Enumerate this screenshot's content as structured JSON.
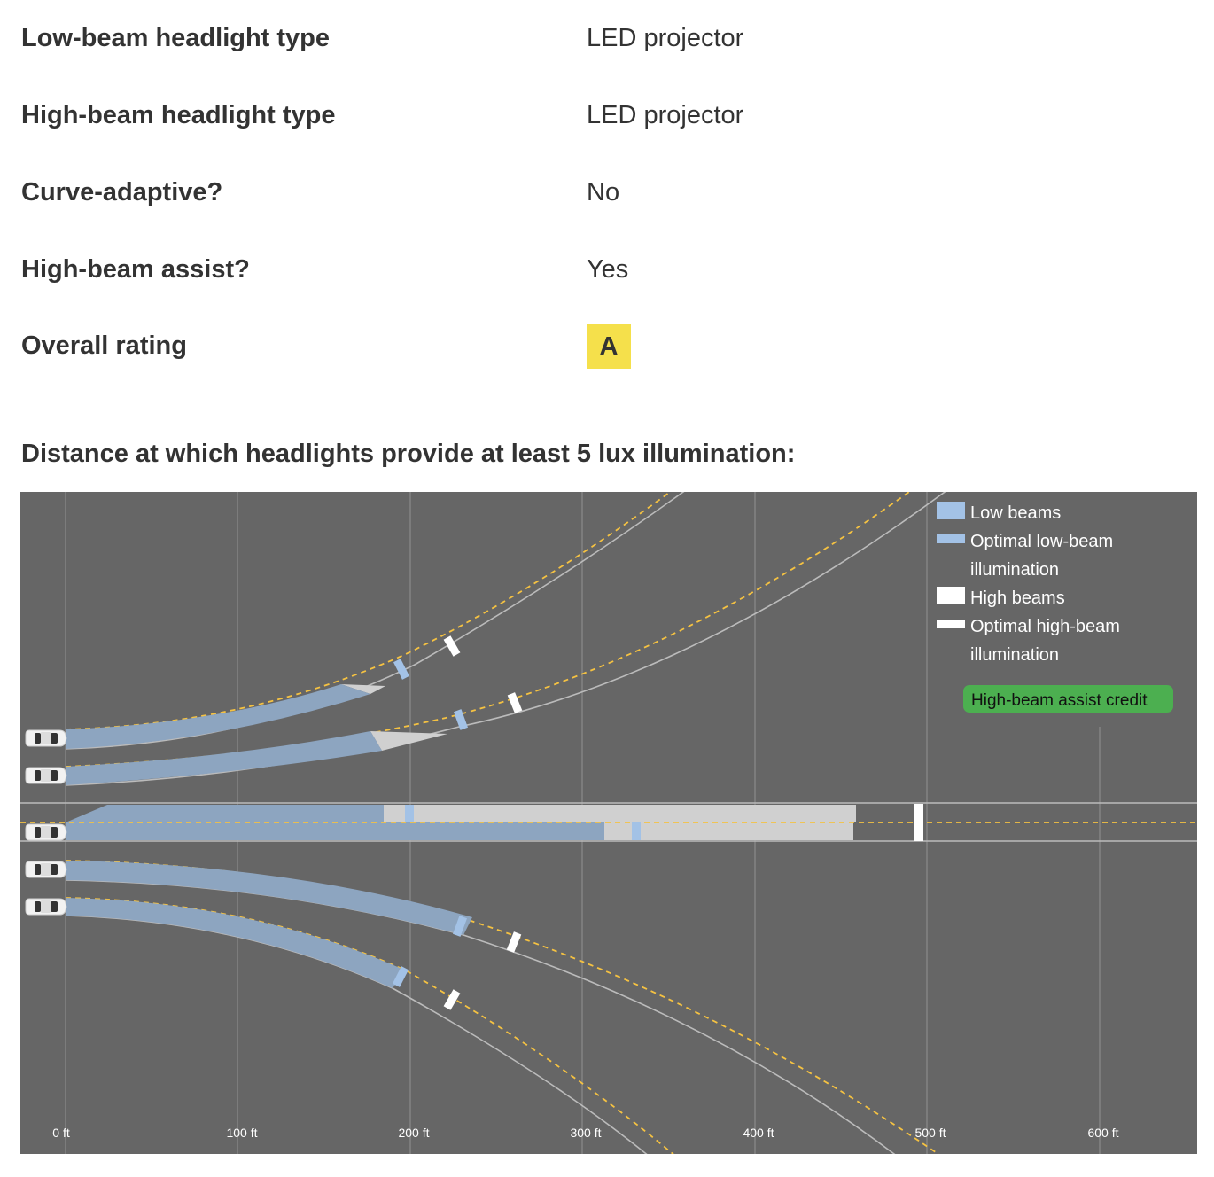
{
  "specs": [
    {
      "label": "Low-beam headlight type",
      "value": "LED projector"
    },
    {
      "label": "High-beam headlight type",
      "value": "LED projector"
    },
    {
      "label": "Curve-adaptive?",
      "value": "No"
    },
    {
      "label": "High-beam assist?",
      "value": "Yes"
    }
  ],
  "overall": {
    "label": "Overall rating",
    "rating": "A",
    "rating_color": "#f5e04b"
  },
  "section_title": "Distance at which headlights provide at least 5 lux illumination:",
  "legend": {
    "low_beams": "Low beams",
    "optimal_low_line1": "Optimal low-beam",
    "optimal_low_line2": "illumination",
    "high_beams": "High beams",
    "optimal_high_line1": "Optimal high-beam",
    "optimal_high_line2": "illumination",
    "assist_credit": "High-beam assist credit"
  },
  "axis_ticks": [
    "0 ft",
    "100 ft",
    "200 ft",
    "300 ft",
    "400 ft",
    "500 ft",
    "600 ft"
  ],
  "colors": {
    "background": "#666666",
    "low_beam": "#8da5c0",
    "optimal_low_marker": "#a3c2e6",
    "high_beam": "#d0d0d0",
    "optimal_high_marker": "#ffffff",
    "assist_credit": "#4caf50",
    "center_line": "#f5c242",
    "road_edge": "#bbbbbb"
  },
  "chart_data": {
    "type": "bar",
    "units": "ft",
    "xlim": [
      0,
      650
    ],
    "series": [
      {
        "name": "Low beams",
        "values": [
          182,
          175,
          337,
          235,
          197
        ]
      },
      {
        "name": "Optimal low-beam illumination",
        "values": [
          195,
          229,
          330,
          229,
          195
        ]
      },
      {
        "name": "High beams",
        "values": [
          186,
          222,
          484,
          0,
          0
        ]
      },
      {
        "name": "Optimal high-beam illumination",
        "values": [
          224,
          261,
          495,
          261,
          224
        ]
      }
    ]
  }
}
